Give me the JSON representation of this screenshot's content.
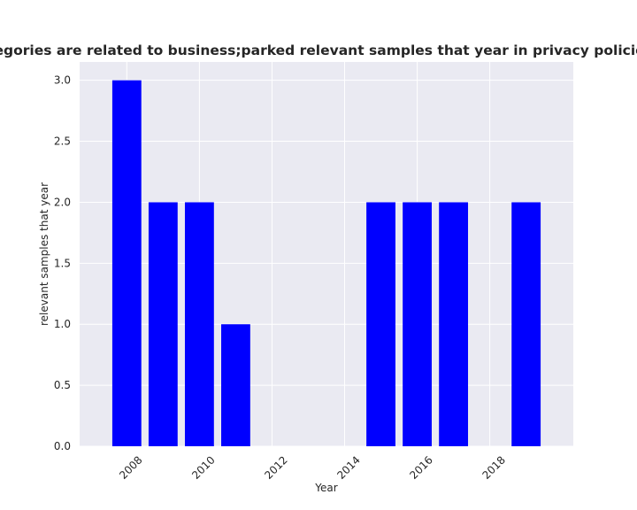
{
  "chart_data": {
    "type": "bar",
    "title": "When categories are related to business;parked relevant samples that year in privacy policies by year",
    "xlabel": "Year",
    "ylabel": "relevant samples that year",
    "x": [
      2008,
      2009,
      2010,
      2011,
      2015,
      2016,
      2017,
      2019
    ],
    "values": [
      3,
      2,
      2,
      1,
      2,
      2,
      2,
      2
    ],
    "xlim": [
      2006.7,
      2020.3
    ],
    "ylim": [
      0,
      3.15
    ],
    "xticks": [
      2008,
      2010,
      2012,
      2014,
      2016,
      2018
    ],
    "yticks": [
      0.0,
      0.5,
      1.0,
      1.5,
      2.0,
      2.5,
      3.0
    ],
    "ytick_labels": [
      "0.0",
      "0.5",
      "1.0",
      "1.5",
      "2.0",
      "2.5",
      "3.0"
    ],
    "bar_color": "#0000ff",
    "plot_background": "#eaeaf2",
    "grid_color": "#ffffff",
    "grid": true
  }
}
